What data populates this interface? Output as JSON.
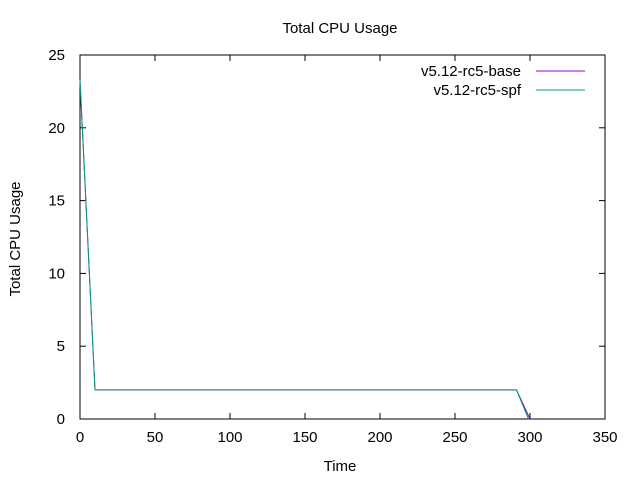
{
  "chart_data": {
    "type": "line",
    "title": "Total CPU Usage",
    "xlabel": "Time",
    "ylabel": "Total CPU Usage",
    "xlim": [
      0,
      350
    ],
    "ylim": [
      0,
      25
    ],
    "xticks": [
      0,
      50,
      100,
      150,
      200,
      250,
      300,
      350
    ],
    "yticks": [
      0,
      5,
      10,
      15,
      20,
      25
    ],
    "grid": false,
    "legend_position": "top-right",
    "series": [
      {
        "name": "v5.12-rc5-base",
        "color": "#9400d3",
        "x": [
          0,
          10,
          291,
          300
        ],
        "y": [
          23.3,
          2.0,
          2.0,
          0.0
        ]
      },
      {
        "name": "v5.12-rc5-spf",
        "color": "#009e73",
        "x": [
          0,
          10,
          291,
          299
        ],
        "y": [
          23.3,
          2.0,
          2.0,
          0.0
        ]
      }
    ]
  }
}
